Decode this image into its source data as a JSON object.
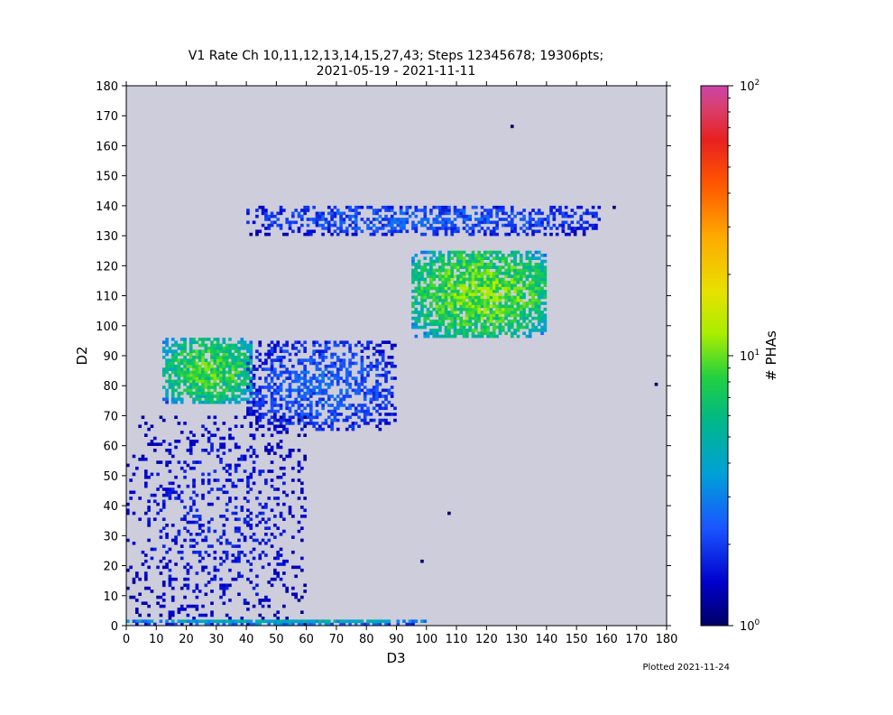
{
  "chart_data": {
    "type": "heatmap",
    "title": "V1 Rate Ch 10,11,12,13,14,15,27,43; Steps 12345678; 19306pts;",
    "subtitle": "2021-05-19 - 2021-11-11",
    "xlabel": "D3",
    "ylabel": "D2",
    "xlim": [
      0,
      180
    ],
    "ylim": [
      0,
      180
    ],
    "xticks": [
      "0",
      "10",
      "20",
      "30",
      "40",
      "50",
      "60",
      "70",
      "80",
      "90",
      "100",
      "110",
      "120",
      "130",
      "140",
      "150",
      "160",
      "170",
      "180"
    ],
    "yticks": [
      "0",
      "10",
      "20",
      "30",
      "40",
      "50",
      "60",
      "70",
      "80",
      "90",
      "100",
      "110",
      "120",
      "130",
      "140",
      "150",
      "160",
      "170",
      "180"
    ],
    "bin_size": 1,
    "background_color": "#cdcddb",
    "colorbar": {
      "label": "# PHAs",
      "scale": "log",
      "range": [
        1,
        100
      ],
      "ticks": [
        {
          "value": 1,
          "base": "10",
          "exp": "0"
        },
        {
          "value": 10,
          "base": "10",
          "exp": "1"
        },
        {
          "value": 100,
          "base": "10",
          "exp": "2"
        }
      ]
    },
    "density_regions": [
      {
        "x_range": [
          12,
          42
        ],
        "y_range": [
          74,
          96
        ],
        "peak_count": 12
      },
      {
        "x_range": [
          40,
          90
        ],
        "y_range": [
          65,
          95
        ],
        "peak_count": 3
      },
      {
        "x_range": [
          95,
          140
        ],
        "y_range": [
          96,
          125
        ],
        "peak_count": 14
      },
      {
        "x_range": [
          40,
          158
        ],
        "y_range": [
          130,
          140
        ],
        "peak_count": 3
      },
      {
        "x_range": [
          0,
          60
        ],
        "y_range": [
          0,
          70
        ],
        "peak_count": 2
      },
      {
        "x_range": [
          0,
          100
        ],
        "y_range": [
          0,
          2
        ],
        "peak_count": 6
      }
    ],
    "isolated_points": [
      [
        128,
        166
      ],
      [
        176,
        80
      ],
      [
        107,
        37
      ],
      [
        98,
        21
      ],
      [
        162,
        139
      ]
    ]
  },
  "footer": {
    "plotted": "Plotted 2021-11-24"
  }
}
